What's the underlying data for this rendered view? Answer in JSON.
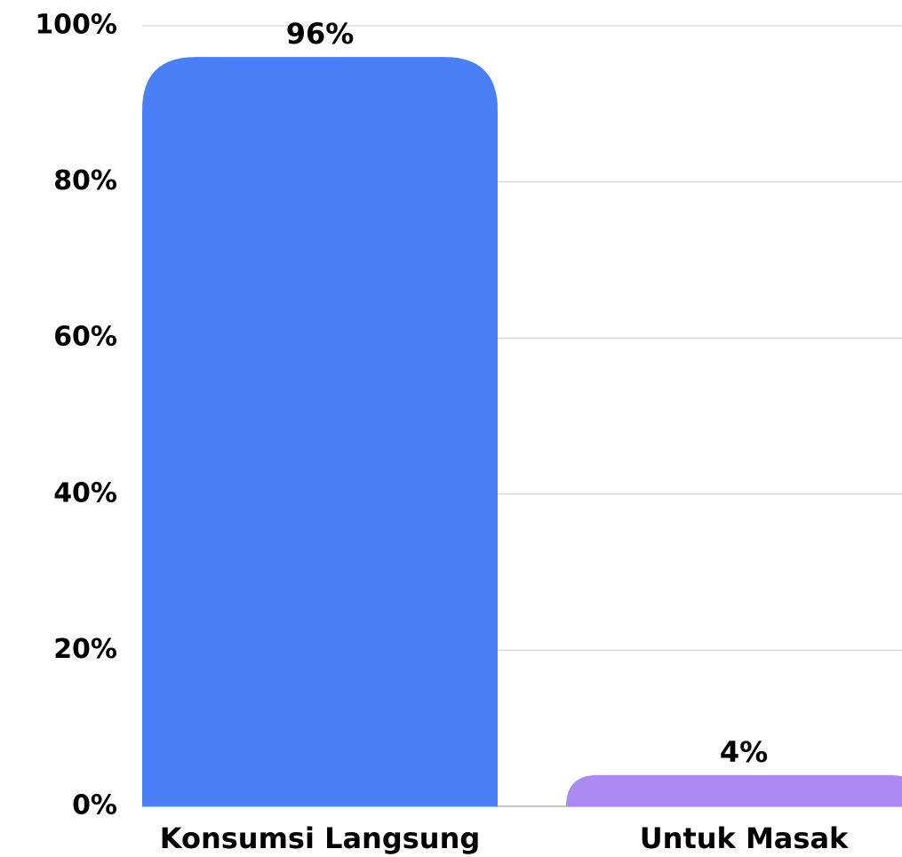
{
  "chart_data": {
    "type": "bar",
    "categories": [
      "Konsumsi Langsung",
      "Untuk Masak"
    ],
    "values": [
      96,
      4
    ],
    "value_labels": [
      "96%",
      "4%"
    ],
    "colors": [
      "#4a7ff7",
      "#ab8bf2"
    ],
    "ylim": [
      0,
      100
    ],
    "yticks": [
      {
        "value": 0,
        "label": "0%"
      },
      {
        "value": 20,
        "label": "20%"
      },
      {
        "value": 40,
        "label": "40%"
      },
      {
        "value": 60,
        "label": "60%"
      },
      {
        "value": 80,
        "label": "80%"
      },
      {
        "value": 100,
        "label": "100%"
      }
    ],
    "grid": true
  }
}
